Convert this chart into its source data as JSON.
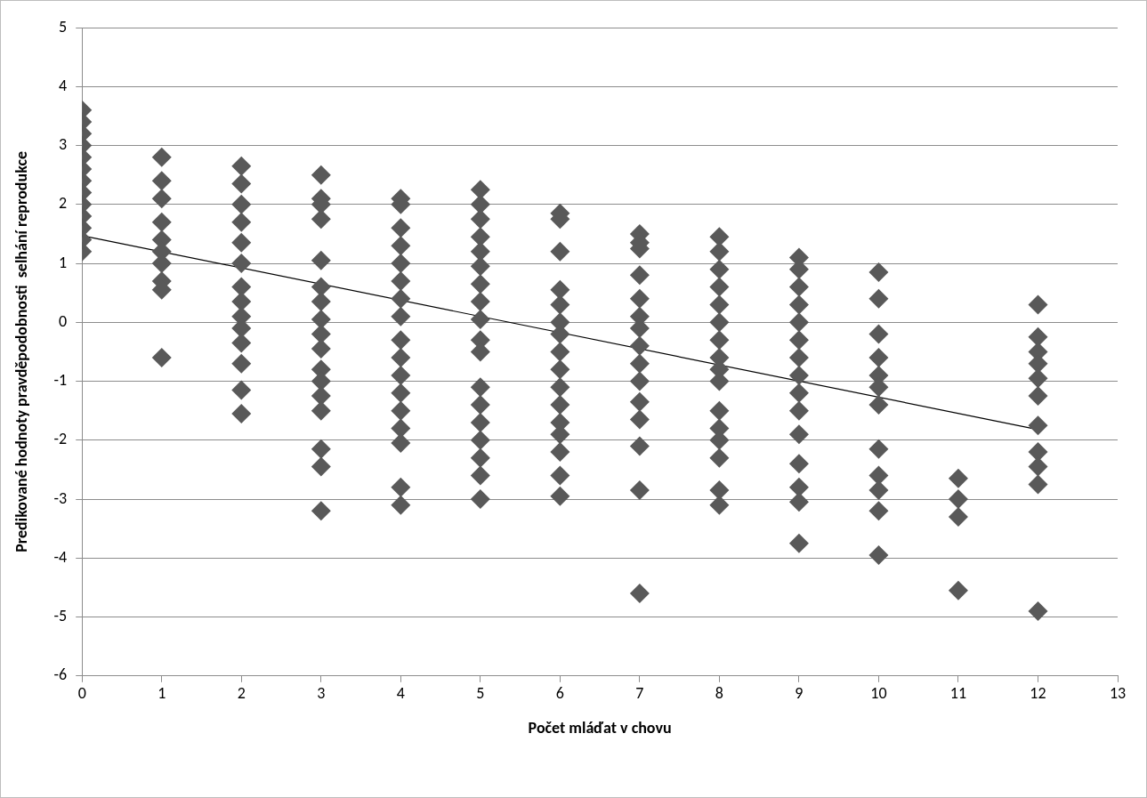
{
  "chart_data": {
    "type": "scatter",
    "xlabel": "Počet mláďat v chovu",
    "ylabel": "Predikované hodnoty pravděpodobnosti  selhání reprodukce",
    "xlim": [
      0,
      13
    ],
    "xticks": [
      0,
      1,
      2,
      3,
      4,
      5,
      6,
      7,
      8,
      9,
      10,
      11,
      12,
      13
    ],
    "ylim": [
      -6,
      5
    ],
    "yticks": [
      -6,
      -5,
      -4,
      -3,
      -2,
      -1,
      0,
      1,
      2,
      3,
      4,
      5
    ],
    "grid": "y",
    "legend": false,
    "marker": "diamond",
    "series": [
      {
        "color": "#595959",
        "x": [
          0,
          0,
          0,
          0,
          0,
          0,
          0,
          0,
          0,
          0,
          0,
          0,
          0,
          1,
          1,
          1,
          1,
          1,
          1,
          1,
          1,
          1,
          1,
          2,
          2,
          2,
          2,
          2,
          2,
          2,
          2,
          2,
          2,
          2,
          2,
          2,
          2,
          3,
          3,
          3,
          3,
          3,
          3,
          3,
          3,
          3,
          3,
          3,
          3,
          3,
          3,
          3,
          3,
          3,
          4,
          4,
          4,
          4,
          4,
          4,
          4,
          4,
          4,
          4,
          4,
          4,
          4,
          4,
          4,
          4,
          4,
          5,
          5,
          5,
          5,
          5,
          5,
          5,
          5,
          5,
          5,
          5,
          5,
          5,
          5,
          5,
          5,
          5,
          5,
          6,
          6,
          6,
          6,
          6,
          6,
          6,
          6,
          6,
          6,
          6,
          6,
          6,
          6,
          6,
          6,
          7,
          7,
          7,
          7,
          7,
          7,
          7,
          7,
          7,
          7,
          7,
          7,
          7,
          7,
          7,
          8,
          8,
          8,
          8,
          8,
          8,
          8,
          8,
          8,
          8,
          8,
          8,
          8,
          8,
          8,
          8,
          9,
          9,
          9,
          9,
          9,
          9,
          9,
          9,
          9,
          9,
          9,
          9,
          9,
          9,
          9,
          10,
          10,
          10,
          10,
          10,
          10,
          10,
          10,
          10,
          10,
          10,
          10,
          11,
          11,
          11,
          11,
          12,
          12,
          12,
          12,
          12,
          12,
          12,
          12,
          12,
          12,
          12
        ],
        "values": [
          3.6,
          3.4,
          3.2,
          3.0,
          2.8,
          2.6,
          2.4,
          2.2,
          2.0,
          1.8,
          1.6,
          1.4,
          1.2,
          2.8,
          2.4,
          2.1,
          1.7,
          1.4,
          1.2,
          1.0,
          0.7,
          0.55,
          -0.6,
          2.65,
          2.35,
          2.0,
          1.7,
          1.35,
          1.0,
          0.6,
          0.35,
          0.1,
          -0.1,
          -0.35,
          -0.7,
          -1.15,
          -1.55,
          2.5,
          2.1,
          2.0,
          1.75,
          1.05,
          0.6,
          0.35,
          0.05,
          -0.2,
          -0.45,
          -0.8,
          -1.0,
          -1.25,
          -1.5,
          -2.15,
          -2.45,
          -3.2,
          2.1,
          2.0,
          1.6,
          1.3,
          1.0,
          0.7,
          0.4,
          0.1,
          -0.3,
          -0.6,
          -0.9,
          -1.2,
          -1.5,
          -1.8,
          -2.05,
          -2.8,
          -3.1,
          2.25,
          2.0,
          1.75,
          1.45,
          1.2,
          0.95,
          0.65,
          0.35,
          0.05,
          -0.3,
          -0.5,
          -1.1,
          -1.4,
          -1.7,
          -2.0,
          -2.3,
          -2.6,
          -3.0,
          1.85,
          1.75,
          1.2,
          0.55,
          0.3,
          0.0,
          -0.2,
          -0.5,
          -0.8,
          -1.1,
          -1.4,
          -1.7,
          -1.9,
          -2.2,
          -2.6,
          -2.95,
          1.5,
          1.35,
          1.25,
          0.8,
          0.4,
          0.1,
          -0.1,
          -0.4,
          -0.7,
          -1.0,
          -1.35,
          -1.65,
          -2.1,
          -2.85,
          -4.6,
          1.45,
          1.2,
          0.9,
          0.6,
          0.3,
          0.0,
          -0.3,
          -0.6,
          -0.8,
          -1.0,
          -1.5,
          -1.8,
          -2.0,
          -2.3,
          -2.85,
          -3.1,
          1.1,
          0.9,
          0.6,
          0.3,
          0.0,
          -0.3,
          -0.6,
          -0.9,
          -1.2,
          -1.5,
          -1.9,
          -2.4,
          -2.8,
          -3.05,
          -3.75,
          0.85,
          0.4,
          -0.2,
          -0.6,
          -0.9,
          -1.1,
          -1.4,
          -2.15,
          -2.6,
          -2.85,
          -3.2,
          -3.95,
          -2.65,
          -3.0,
          -3.3,
          -4.55,
          0.3,
          -0.25,
          -0.5,
          -0.7,
          -0.95,
          -1.25,
          -1.75,
          -2.2,
          -2.45,
          -2.75,
          -4.9
        ]
      },
      {
        "type": "line",
        "color": "#000000",
        "marker": "none",
        "x": [
          0,
          12
        ],
        "values": [
          1.47,
          -1.82
        ]
      }
    ]
  }
}
